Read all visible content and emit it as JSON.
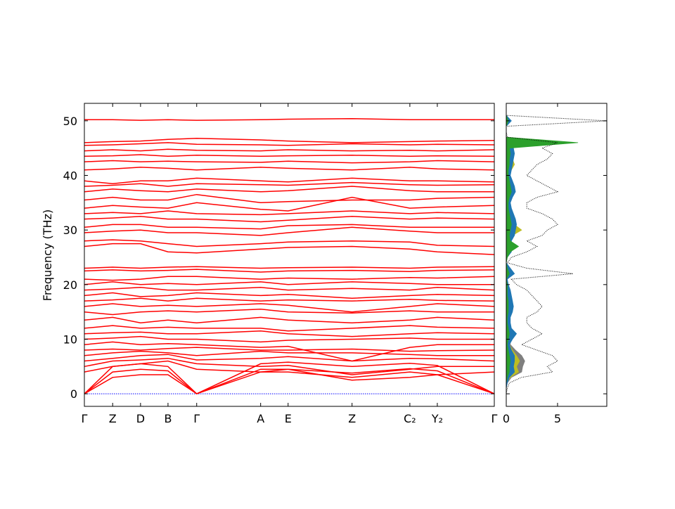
{
  "chart_data": [
    {
      "type": "line",
      "ylabel": "Frequency (THz)",
      "color": "#ff0000",
      "x": [
        0,
        0.069,
        0.137,
        0.204,
        0.274,
        0.43,
        0.497,
        0.653,
        0.794,
        0.861,
        1.0
      ],
      "xlim": [
        0,
        1.0
      ],
      "xticks": [
        {
          "value": 0,
          "label": "Γ"
        },
        {
          "value": 0.069,
          "label": "Z"
        },
        {
          "value": 0.137,
          "label": "D"
        },
        {
          "value": 0.204,
          "label": "B"
        },
        {
          "value": 0.274,
          "label": "Γ"
        },
        {
          "value": 0.43,
          "label": "A"
        },
        {
          "value": 0.497,
          "label": "E"
        },
        {
          "value": 0.653,
          "label": "Z"
        },
        {
          "value": 0.794,
          "label": "C₂"
        },
        {
          "value": 0.861,
          "label": "Y₂"
        },
        {
          "value": 1.0,
          "label": "Γ"
        }
      ],
      "ylim": [
        -2.3,
        53.2
      ],
      "yticks": [
        0,
        10,
        20,
        30,
        40,
        50
      ],
      "zero_line_color": "#0000ff",
      "series": [
        {
          "values": [
            0,
            3,
            3.5,
            3.5,
            0,
            4,
            4,
            3,
            4,
            3.5,
            0
          ]
        },
        {
          "values": [
            0,
            4,
            4.5,
            4.2,
            0,
            4.5,
            4.5,
            3.8,
            4.6,
            4.2,
            0
          ]
        },
        {
          "values": [
            0,
            5,
            5.5,
            5,
            0,
            5.5,
            5.8,
            5,
            5.6,
            5.2,
            0
          ]
        },
        {
          "values": [
            4,
            5,
            5.5,
            6,
            4.5,
            4,
            4.5,
            2.5,
            3,
            3.5,
            4
          ]
        },
        {
          "values": [
            5,
            6,
            6.2,
            6.5,
            5.5,
            5,
            5.2,
            3.5,
            4.5,
            5,
            5
          ]
        },
        {
          "values": [
            6,
            6.5,
            7,
            7.2,
            6.2,
            6.5,
            6.8,
            6,
            6.5,
            6.4,
            6
          ]
        },
        {
          "values": [
            7,
            7.5,
            7.8,
            7.5,
            7,
            7.8,
            7.5,
            7.5,
            7.2,
            7,
            7
          ]
        },
        {
          "values": [
            8,
            8.2,
            8,
            8.3,
            8.5,
            8,
            8,
            8.2,
            7.8,
            7.9,
            8
          ]
        },
        {
          "values": [
            9,
            9.5,
            9,
            9.2,
            9,
            8.5,
            8.7,
            6,
            8.5,
            9,
            9
          ]
        },
        {
          "values": [
            10,
            10.2,
            10.5,
            10,
            10,
            9.5,
            9.8,
            10,
            10.2,
            10,
            10
          ]
        },
        {
          "values": [
            11,
            11.2,
            11.3,
            11,
            11,
            11.5,
            11,
            10.5,
            11,
            11.2,
            11
          ]
        },
        {
          "values": [
            12,
            12.5,
            12,
            12.2,
            12,
            12,
            11.5,
            12,
            12.5,
            12.2,
            12
          ]
        },
        {
          "values": [
            13.5,
            14,
            13,
            13.5,
            13,
            14,
            13.5,
            13,
            13.5,
            14,
            13.5
          ]
        },
        {
          "values": [
            15,
            14.5,
            15,
            15.2,
            15,
            15.5,
            15,
            14.8,
            15.2,
            15,
            15
          ]
        },
        {
          "values": [
            16,
            16.5,
            16,
            16.2,
            16,
            16.5,
            16.2,
            15,
            16,
            16.5,
            16
          ]
        },
        {
          "values": [
            17,
            17.2,
            17.5,
            17,
            17.5,
            17,
            17.2,
            17,
            17.3,
            17.1,
            17
          ]
        },
        {
          "values": [
            18,
            18.5,
            17.8,
            18,
            18.5,
            18,
            18.2,
            17.5,
            18,
            18.2,
            18
          ]
        },
        {
          "values": [
            19,
            19.2,
            19.5,
            19,
            19,
            19.5,
            19,
            19.3,
            19,
            19.5,
            19
          ]
        },
        {
          "values": [
            20,
            20.5,
            20,
            20.2,
            20,
            20.5,
            20,
            20.5,
            20.2,
            20,
            20
          ]
        },
        {
          "values": [
            21,
            20.8,
            21,
            21.5,
            21.5,
            21,
            21.2,
            21,
            21.3,
            21.2,
            21.5
          ]
        },
        {
          "values": [
            22.5,
            22.7,
            22.5,
            22.6,
            22.8,
            22.3,
            22.5,
            22.6,
            22.4,
            22.6,
            22.7
          ]
        },
        {
          "values": [
            23,
            23.2,
            23,
            23.2,
            23.3,
            23,
            23.1,
            23.2,
            23,
            23.2,
            23.3
          ]
        },
        {
          "values": [
            27,
            27.5,
            27.5,
            26,
            25.8,
            26.5,
            26.8,
            27,
            26.5,
            26,
            25.5
          ]
        },
        {
          "values": [
            28,
            28.2,
            28,
            27.5,
            27,
            27.5,
            27.8,
            28,
            27.8,
            27.2,
            27
          ]
        },
        {
          "values": [
            29.5,
            29.8,
            30,
            29.5,
            29.5,
            29,
            29.5,
            30.5,
            29.8,
            29.5,
            29.5
          ]
        },
        {
          "values": [
            30.5,
            31,
            31,
            30.5,
            30.5,
            30.2,
            30.8,
            31,
            30.5,
            30.5,
            30.5
          ]
        },
        {
          "values": [
            32,
            32.2,
            32.5,
            32,
            32,
            31.5,
            31.8,
            32.5,
            32,
            32.2,
            32
          ]
        },
        {
          "values": [
            33,
            33.2,
            33,
            33.5,
            33,
            32.8,
            33,
            33.5,
            33,
            33.2,
            33
          ]
        },
        {
          "values": [
            34,
            34.5,
            34.2,
            34,
            35,
            33.8,
            33.5,
            36,
            34,
            34.2,
            34.5
          ]
        },
        {
          "values": [
            35.5,
            36,
            35.5,
            35.5,
            36.5,
            35,
            35.2,
            35.5,
            35.5,
            35.8,
            36
          ]
        },
        {
          "values": [
            37,
            37.5,
            37.2,
            37,
            37.5,
            37,
            37.2,
            38,
            37.2,
            37,
            37
          ]
        },
        {
          "values": [
            38,
            38.2,
            38.5,
            38,
            38.5,
            38.3,
            38.2,
            38.7,
            38.3,
            38.2,
            38.3
          ]
        },
        {
          "values": [
            39,
            38.5,
            39,
            39,
            39.5,
            39,
            38.8,
            39.5,
            39,
            39,
            38.8
          ]
        },
        {
          "values": [
            41,
            41.2,
            41.5,
            41.3,
            41,
            41.5,
            41.3,
            41,
            41.5,
            41.2,
            41
          ]
        },
        {
          "values": [
            42.5,
            42.7,
            42.5,
            42.6,
            42.5,
            42.4,
            42.6,
            42.3,
            42.5,
            42.7,
            42.5
          ]
        },
        {
          "values": [
            43.5,
            43.6,
            43.8,
            43.5,
            43.7,
            43.5,
            43.6,
            43.7,
            43.5,
            43.6,
            43.5
          ]
        },
        {
          "values": [
            44.5,
            44.7,
            44.5,
            44.8,
            44.6,
            44.5,
            44.7,
            44.5,
            44.6,
            44.5,
            44.7
          ]
        },
        {
          "values": [
            45.5,
            45.6,
            45.8,
            46,
            45.7,
            45.6,
            45.5,
            45.8,
            45.6,
            45.7,
            45.6
          ]
        },
        {
          "values": [
            46,
            46.2,
            46.3,
            46.6,
            46.8,
            46.5,
            46.3,
            46,
            46.2,
            46.3,
            46.4
          ]
        },
        {
          "values": [
            50.2,
            50.2,
            50.1,
            50.2,
            50.1,
            50.2,
            50.3,
            50.4,
            50.2,
            50.2,
            50.2
          ]
        }
      ]
    },
    {
      "type": "area",
      "orientation": "horizontal",
      "y": [
        0,
        1,
        2,
        3,
        4,
        5,
        6,
        7,
        8,
        9,
        10,
        11,
        12,
        13,
        14,
        15,
        16,
        17,
        18,
        19,
        20,
        21,
        22,
        23,
        24,
        25,
        26,
        27,
        28,
        29,
        30,
        31,
        32,
        33,
        34,
        35,
        36,
        37,
        38,
        39,
        40,
        41,
        42,
        43,
        44,
        45,
        46,
        47,
        48,
        49,
        50,
        51
      ],
      "xlim": [
        0,
        9.8
      ],
      "xticks": [
        0,
        5
      ],
      "ylim": [
        -2.3,
        53.2
      ],
      "yticks": [
        0,
        10,
        20,
        30,
        40,
        50
      ],
      "ytick_labels": false,
      "series": [
        {
          "color": "#7f7f7f",
          "fill": true,
          "values": [
            0,
            0,
            0.1,
            0.5,
            1.5,
            1.6,
            1.8,
            1.5,
            0.9,
            0.4,
            0.4,
            0.5,
            0.3,
            0.2,
            0.2,
            0.3,
            0.3,
            0.3,
            0.2,
            0.2,
            0.1,
            0,
            0.3,
            0.1,
            0,
            0,
            0.2,
            0.3,
            0.2,
            0.3,
            0.4,
            0.4,
            0.4,
            0.3,
            0.2,
            0.2,
            0.3,
            0.4,
            0.3,
            0.3,
            0.2,
            0.2,
            0.3,
            0.3,
            0.3,
            0.3,
            0.4,
            0,
            0,
            0,
            0.1,
            0
          ]
        },
        {
          "color": "#bcbd22",
          "fill": true,
          "values": [
            0,
            0,
            0.05,
            0.4,
            1.2,
            1.0,
            1.3,
            1.0,
            0.6,
            0.3,
            0.5,
            0.6,
            0.4,
            0.3,
            0.3,
            0.5,
            0.5,
            0.4,
            0.3,
            0.3,
            0.1,
            0.1,
            0.6,
            0.2,
            0,
            0.1,
            0.3,
            0.5,
            0.3,
            0.6,
            1.5,
            0.8,
            0.6,
            0.5,
            0.3,
            0.3,
            0.4,
            0.6,
            0.5,
            0.4,
            0.3,
            0.5,
            0.8,
            0.6,
            0.7,
            0.5,
            0.8,
            0,
            0,
            0,
            0.3,
            0
          ]
        },
        {
          "color": "#1f77b4",
          "fill": true,
          "values": [
            0,
            0,
            0.1,
            0.3,
            0.8,
            0.7,
            0.8,
            0.8,
            0.5,
            0.3,
            0.6,
            1.0,
            0.5,
            0.4,
            0.4,
            0.6,
            0.7,
            0.6,
            0.5,
            0.4,
            0.2,
            0.1,
            0.8,
            0.4,
            0,
            0.1,
            0.5,
            0.6,
            0.5,
            0.8,
            0.9,
            1.0,
            0.9,
            0.7,
            0.5,
            0.4,
            0.6,
            0.9,
            0.8,
            0.6,
            0.4,
            0.5,
            0.6,
            0.7,
            0.8,
            0.7,
            1.2,
            0,
            0,
            0,
            0.5,
            0
          ]
        },
        {
          "color": "#2ca02c",
          "fill": true,
          "values": [
            0,
            0,
            0,
            0.1,
            0.3,
            0.3,
            0.4,
            0.3,
            0.2,
            0.1,
            0.2,
            0.3,
            0.2,
            0.1,
            0.1,
            0.2,
            0.2,
            0.2,
            0.1,
            0.1,
            0.1,
            0,
            0.3,
            0.1,
            0,
            0.1,
            0.4,
            1.2,
            0.4,
            0.3,
            0.4,
            0.5,
            0.4,
            0.3,
            0.2,
            0.2,
            0.3,
            0.5,
            0.4,
            0.3,
            0.2,
            0.2,
            0.3,
            0.3,
            0.4,
            0.3,
            7,
            0,
            0,
            0,
            0.2,
            0
          ]
        },
        {
          "color": "#000000",
          "fill": false,
          "dotted": true,
          "values": [
            0,
            0.1,
            0.3,
            1.5,
            4.5,
            4,
            5,
            4.5,
            3,
            1.5,
            2.5,
            3.5,
            2.5,
            2,
            2,
            3,
            3.5,
            3,
            2.5,
            2,
            1,
            0.5,
            6.5,
            2,
            0.1,
            0.5,
            2,
            3,
            2,
            3.5,
            4,
            5,
            4.5,
            3.5,
            2,
            2,
            3,
            5,
            4,
            3,
            2,
            2.5,
            3,
            4,
            4.5,
            3.5,
            5,
            0.1,
            0,
            0,
            9.8,
            0
          ]
        }
      ]
    }
  ]
}
